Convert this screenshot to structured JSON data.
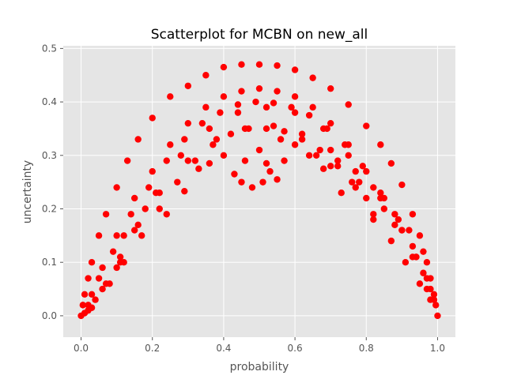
{
  "chart_data": {
    "type": "scatter",
    "title": "Scatterplot for MCBN on new_all",
    "xlabel": "probability",
    "ylabel": "uncertainty",
    "xlim": [
      -0.05,
      1.05
    ],
    "ylim": [
      -0.04,
      0.505
    ],
    "xticks": [
      0.0,
      0.2,
      0.4,
      0.6,
      0.8,
      1.0
    ],
    "xtick_labels": [
      "0.0",
      "0.2",
      "0.4",
      "0.6",
      "0.8",
      "1.0"
    ],
    "yticks": [
      0.0,
      0.1,
      0.2,
      0.3,
      0.4,
      0.5
    ],
    "ytick_labels": [
      "0.0",
      "0.1",
      "0.2",
      "0.3",
      "0.4",
      "0.5"
    ],
    "grid": true,
    "colors": {
      "points": "#ff0000",
      "plot_background": "#e5e5e5",
      "grid": "#ffffff"
    },
    "series": [
      {
        "name": "",
        "x": [
          0.0,
          0.005,
          0.01,
          0.02,
          0.03,
          0.05,
          0.07,
          0.1,
          0.13,
          0.16,
          0.2,
          0.25,
          0.3,
          0.35,
          0.4,
          0.45,
          0.5,
          0.55,
          0.6,
          0.65,
          0.7,
          0.75,
          0.8,
          0.84,
          0.87,
          0.9,
          0.93,
          0.95,
          0.97,
          0.98,
          0.99,
          0.995,
          1.0,
          0.01,
          0.03,
          0.06,
          0.1,
          0.15,
          0.2,
          0.25,
          0.3,
          0.35,
          0.4,
          0.45,
          0.5,
          0.55,
          0.6,
          0.65,
          0.7,
          0.75,
          0.8,
          0.85,
          0.9,
          0.94,
          0.97,
          0.99,
          0.02,
          0.05,
          0.09,
          0.14,
          0.19,
          0.24,
          0.29,
          0.34,
          0.39,
          0.44,
          0.49,
          0.54,
          0.59,
          0.64,
          0.69,
          0.74,
          0.79,
          0.84,
          0.89,
          0.93,
          0.96,
          0.98,
          0.02,
          0.04,
          0.08,
          0.12,
          0.17,
          0.22,
          0.27,
          0.32,
          0.37,
          0.42,
          0.47,
          0.52,
          0.57,
          0.62,
          0.67,
          0.72,
          0.77,
          0.82,
          0.87,
          0.91,
          0.95,
          0.98,
          0.03,
          0.06,
          0.1,
          0.15,
          0.21,
          0.28,
          0.36,
          0.44,
          0.52,
          0.6,
          0.68,
          0.75,
          0.82,
          0.88,
          0.93,
          0.97,
          0.07,
          0.11,
          0.16,
          0.22,
          0.3,
          0.38,
          0.46,
          0.54,
          0.62,
          0.7,
          0.77,
          0.84,
          0.9,
          0.94,
          0.43,
          0.45,
          0.48,
          0.52,
          0.53,
          0.55,
          0.51,
          0.57,
          0.29,
          0.66,
          0.7,
          0.73,
          0.76,
          0.8,
          0.82,
          0.85,
          0.88,
          0.92,
          0.96,
          0.12,
          0.18,
          0.24,
          0.11,
          0.4,
          0.46,
          0.5,
          0.56,
          0.6,
          0.64,
          0.36,
          0.33,
          0.68,
          0.72,
          0.78
        ],
        "y": [
          0.0,
          0.02,
          0.04,
          0.07,
          0.1,
          0.15,
          0.19,
          0.24,
          0.29,
          0.33,
          0.37,
          0.41,
          0.43,
          0.45,
          0.465,
          0.47,
          0.47,
          0.468,
          0.46,
          0.445,
          0.425,
          0.395,
          0.355,
          0.32,
          0.285,
          0.245,
          0.19,
          0.15,
          0.1,
          0.07,
          0.04,
          0.02,
          0.0,
          0.005,
          0.04,
          0.09,
          0.15,
          0.22,
          0.27,
          0.32,
          0.36,
          0.39,
          0.41,
          0.42,
          0.425,
          0.42,
          0.41,
          0.39,
          0.36,
          0.32,
          0.27,
          0.22,
          0.16,
          0.11,
          0.07,
          0.03,
          0.02,
          0.07,
          0.12,
          0.19,
          0.24,
          0.29,
          0.33,
          0.36,
          0.38,
          0.395,
          0.4,
          0.398,
          0.39,
          0.375,
          0.35,
          0.32,
          0.28,
          0.23,
          0.18,
          0.13,
          0.08,
          0.05,
          0.01,
          0.03,
          0.06,
          0.1,
          0.15,
          0.2,
          0.25,
          0.29,
          0.32,
          0.34,
          0.35,
          0.35,
          0.345,
          0.33,
          0.31,
          0.28,
          0.24,
          0.19,
          0.14,
          0.1,
          0.06,
          0.03,
          0.015,
          0.05,
          0.09,
          0.16,
          0.23,
          0.3,
          0.35,
          0.38,
          0.39,
          0.38,
          0.35,
          0.3,
          0.24,
          0.17,
          0.11,
          0.05,
          0.06,
          0.11,
          0.17,
          0.23,
          0.29,
          0.33,
          0.35,
          0.355,
          0.34,
          0.31,
          0.27,
          0.22,
          0.16,
          0.11,
          0.265,
          0.25,
          0.24,
          0.285,
          0.27,
          0.255,
          0.25,
          0.29,
          0.233,
          0.3,
          0.28,
          0.23,
          0.25,
          0.22,
          0.18,
          0.2,
          0.19,
          0.16,
          0.12,
          0.15,
          0.2,
          0.19,
          0.1,
          0.3,
          0.29,
          0.31,
          0.33,
          0.32,
          0.3,
          0.285,
          0.275,
          0.275,
          0.29,
          0.25
        ]
      }
    ]
  }
}
